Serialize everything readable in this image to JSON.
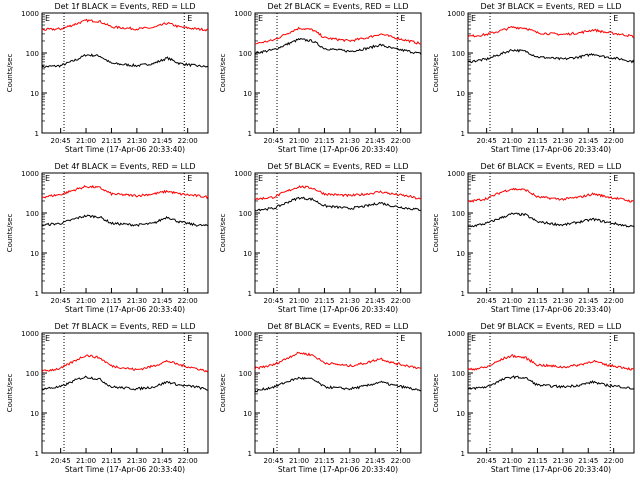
{
  "common": {
    "x_tick_labels": [
      "20:45",
      "21:00",
      "21:15",
      "21:30",
      "21:45",
      "22:00"
    ],
    "y_tick_labels": [
      "1",
      "10",
      "100",
      "1000"
    ],
    "ylabel": "Counts/sec",
    "xlabel": "Start Time (17-Apr-06 20:33:40)",
    "corner_marker": "E",
    "colors": {
      "events": "#000000",
      "lld": "#ff0000",
      "axis": "#000000"
    }
  },
  "chart_data": [
    {
      "type": "line",
      "title": "Det 1f BLACK = Events, RED = LLD",
      "xlim": [
        "20:34",
        "22:12"
      ],
      "ylim": [
        1,
        1000
      ],
      "yscale": "log",
      "x": [
        "20:34",
        "20:45",
        "20:55",
        "21:00",
        "21:08",
        "21:15",
        "21:30",
        "21:40",
        "21:48",
        "21:55",
        "22:05",
        "22:12"
      ],
      "markers": [
        "20:47",
        "21:58"
      ],
      "series": [
        {
          "name": "BLACK = Events",
          "color": "#000000",
          "values": [
            45,
            48,
            70,
            90,
            85,
            55,
            48,
            55,
            75,
            55,
            48,
            45
          ]
        },
        {
          "name": "RED = LLD",
          "color": "#ff0000",
          "values": [
            380,
            400,
            550,
            650,
            620,
            450,
            400,
            430,
            560,
            450,
            400,
            380
          ]
        }
      ]
    },
    {
      "type": "line",
      "title": "Det 2f BLACK = Events, RED = LLD",
      "xlim": [
        "20:34",
        "22:12"
      ],
      "ylim": [
        1,
        1000
      ],
      "yscale": "log",
      "x": [
        "20:34",
        "20:45",
        "20:55",
        "21:00",
        "21:08",
        "21:15",
        "21:30",
        "21:40",
        "21:48",
        "21:55",
        "22:05",
        "22:12"
      ],
      "markers": [
        "20:47",
        "21:58"
      ],
      "series": [
        {
          "name": "BLACK = Events",
          "color": "#000000",
          "values": [
            100,
            120,
            180,
            220,
            200,
            130,
            110,
            130,
            160,
            130,
            110,
            95
          ]
        },
        {
          "name": "RED = LLD",
          "color": "#ff0000",
          "values": [
            170,
            210,
            340,
            420,
            380,
            240,
            200,
            240,
            300,
            250,
            200,
            170
          ]
        }
      ]
    },
    {
      "type": "line",
      "title": "Det 3f BLACK = Events, RED = LLD",
      "xlim": [
        "20:34",
        "22:12"
      ],
      "ylim": [
        1,
        1000
      ],
      "yscale": "log",
      "x": [
        "20:34",
        "20:45",
        "20:55",
        "21:00",
        "21:08",
        "21:15",
        "21:30",
        "21:40",
        "21:48",
        "21:55",
        "22:05",
        "22:12"
      ],
      "markers": [
        "20:47",
        "21:58"
      ],
      "series": [
        {
          "name": "BLACK = Events",
          "color": "#000000",
          "values": [
            60,
            70,
            100,
            120,
            110,
            80,
            70,
            80,
            95,
            80,
            70,
            60
          ]
        },
        {
          "name": "RED = LLD",
          "color": "#ff0000",
          "values": [
            260,
            290,
            380,
            440,
            420,
            320,
            290,
            320,
            380,
            330,
            290,
            260
          ]
        }
      ]
    },
    {
      "type": "line",
      "title": "Det 4f BLACK = Events, RED = LLD",
      "xlim": [
        "20:34",
        "22:12"
      ],
      "ylim": [
        1,
        1000
      ],
      "yscale": "log",
      "x": [
        "20:34",
        "20:45",
        "20:55",
        "21:00",
        "21:08",
        "21:15",
        "21:30",
        "21:40",
        "21:48",
        "21:55",
        "22:05",
        "22:12"
      ],
      "markers": [
        "20:47",
        "21:58"
      ],
      "series": [
        {
          "name": "BLACK = Events",
          "color": "#000000",
          "values": [
            50,
            55,
            75,
            85,
            80,
            55,
            50,
            55,
            80,
            60,
            50,
            48
          ]
        },
        {
          "name": "RED = LLD",
          "color": "#ff0000",
          "values": [
            250,
            290,
            400,
            460,
            430,
            300,
            270,
            300,
            350,
            300,
            270,
            250
          ]
        }
      ]
    },
    {
      "type": "line",
      "title": "Det 5f BLACK = Events, RED = LLD",
      "xlim": [
        "20:34",
        "22:12"
      ],
      "ylim": [
        1,
        1000
      ],
      "yscale": "log",
      "x": [
        "20:34",
        "20:45",
        "20:55",
        "21:00",
        "21:08",
        "21:15",
        "21:30",
        "21:40",
        "21:48",
        "21:55",
        "22:05",
        "22:12"
      ],
      "markers": [
        "20:47",
        "21:58"
      ],
      "series": [
        {
          "name": "BLACK = Events",
          "color": "#000000",
          "values": [
            120,
            130,
            200,
            240,
            220,
            150,
            130,
            150,
            180,
            150,
            130,
            120
          ]
        },
        {
          "name": "RED = LLD",
          "color": "#ff0000",
          "values": [
            220,
            250,
            380,
            460,
            420,
            300,
            270,
            300,
            340,
            300,
            260,
            220
          ]
        }
      ]
    },
    {
      "type": "line",
      "title": "Det 6f BLACK = Events, RED = LLD",
      "xlim": [
        "20:34",
        "22:12"
      ],
      "ylim": [
        1,
        1000
      ],
      "yscale": "log",
      "x": [
        "20:34",
        "20:45",
        "20:55",
        "21:00",
        "21:08",
        "21:15",
        "21:30",
        "21:40",
        "21:48",
        "21:55",
        "22:05",
        "22:12"
      ],
      "markers": [
        "20:47",
        "21:58"
      ],
      "series": [
        {
          "name": "BLACK = Events",
          "color": "#000000",
          "values": [
            45,
            55,
            80,
            95,
            90,
            60,
            50,
            60,
            70,
            60,
            50,
            45
          ]
        },
        {
          "name": "RED = LLD",
          "color": "#ff0000",
          "values": [
            190,
            230,
            350,
            400,
            380,
            250,
            220,
            250,
            300,
            260,
            220,
            190
          ]
        }
      ]
    },
    {
      "type": "line",
      "title": "Det 7f BLACK = Events, RED = LLD",
      "xlim": [
        "20:34",
        "22:12"
      ],
      "ylim": [
        1,
        1000
      ],
      "yscale": "log",
      "x": [
        "20:34",
        "20:45",
        "20:55",
        "21:00",
        "21:08",
        "21:15",
        "21:30",
        "21:40",
        "21:48",
        "21:55",
        "22:05",
        "22:12"
      ],
      "markers": [
        "20:47",
        "21:58"
      ],
      "series": [
        {
          "name": "BLACK = Events",
          "color": "#000000",
          "values": [
            40,
            45,
            70,
            80,
            70,
            45,
            40,
            45,
            60,
            50,
            45,
            38
          ]
        },
        {
          "name": "RED = LLD",
          "color": "#ff0000",
          "values": [
            110,
            130,
            220,
            280,
            240,
            150,
            120,
            150,
            200,
            160,
            130,
            110
          ]
        }
      ]
    },
    {
      "type": "line",
      "title": "Det 8f BLACK = Events, RED = LLD",
      "xlim": [
        "20:34",
        "22:12"
      ],
      "ylim": [
        1,
        1000
      ],
      "yscale": "log",
      "x": [
        "20:34",
        "20:45",
        "20:55",
        "21:00",
        "21:08",
        "21:15",
        "21:30",
        "21:40",
        "21:48",
        "21:55",
        "22:05",
        "22:12"
      ],
      "markers": [
        "20:47",
        "21:58"
      ],
      "series": [
        {
          "name": "BLACK = Events",
          "color": "#000000",
          "values": [
            35,
            45,
            65,
            75,
            70,
            45,
            40,
            48,
            60,
            50,
            42,
            35
          ]
        },
        {
          "name": "RED = LLD",
          "color": "#ff0000",
          "values": [
            130,
            160,
            260,
            320,
            280,
            180,
            150,
            180,
            230,
            180,
            150,
            130
          ]
        }
      ]
    },
    {
      "type": "line",
      "title": "Det 9f BLACK = Events, RED = LLD",
      "xlim": [
        "20:34",
        "22:12"
      ],
      "ylim": [
        1,
        1000
      ],
      "yscale": "log",
      "x": [
        "20:34",
        "20:45",
        "20:55",
        "21:00",
        "21:08",
        "21:15",
        "21:30",
        "21:40",
        "21:48",
        "21:55",
        "22:05",
        "22:12"
      ],
      "markers": [
        "20:47",
        "21:58"
      ],
      "series": [
        {
          "name": "BLACK = Events",
          "color": "#000000",
          "values": [
            40,
            45,
            70,
            80,
            75,
            50,
            45,
            50,
            60,
            50,
            45,
            40
          ]
        },
        {
          "name": "RED = LLD",
          "color": "#ff0000",
          "values": [
            120,
            140,
            230,
            270,
            240,
            160,
            140,
            160,
            200,
            160,
            140,
            120
          ]
        }
      ]
    }
  ]
}
